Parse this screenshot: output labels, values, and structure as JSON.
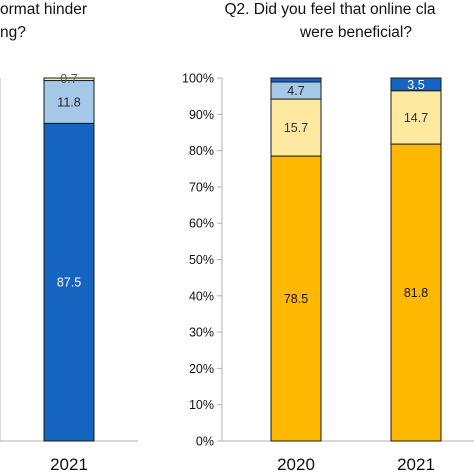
{
  "chart_data": [
    {
      "type": "bar",
      "stacked": true,
      "title_lines": [
        "ormat hinder",
        "ng?"
      ],
      "categories": [
        "2021"
      ],
      "series": [
        {
          "values": [
            87.5
          ],
          "color": "#1565C0",
          "label_color": "#ffffff"
        },
        {
          "values": [
            11.8
          ],
          "color": "#A6C8E8",
          "label_color": "#222222"
        },
        {
          "values": [
            0.7
          ],
          "color": "#FFE8A0",
          "label_color": "#555555"
        }
      ],
      "ylim": [
        0,
        100
      ],
      "grid": false
    },
    {
      "type": "bar",
      "stacked": true,
      "title_lines": [
        "Q2. Did you feel that online cla",
        "were beneficial?"
      ],
      "categories": [
        "2020",
        "2021"
      ],
      "series": [
        {
          "values": [
            78.5,
            81.8
          ],
          "color": "#FFB800",
          "label_color": "#111111"
        },
        {
          "values": [
            15.7,
            14.7
          ],
          "color": "#FFE8A0",
          "label_color": "#333333"
        },
        {
          "values": [
            4.7,
            0
          ],
          "color": "#A6C8E8",
          "label_color": "#222222"
        },
        {
          "values": [
            1.1,
            3.5
          ],
          "color": "#1565C0",
          "label_color": "#ffffff"
        }
      ],
      "display_labels": [
        [
          "78.5",
          "81.8"
        ],
        [
          "15.7",
          "14.7"
        ],
        [
          "4.7",
          ""
        ],
        [
          "",
          "3.5"
        ]
      ],
      "ylim": [
        0,
        100
      ],
      "yticks": [
        "0%",
        "10%",
        "20%",
        "30%",
        "40%",
        "50%",
        "60%",
        "70%",
        "80%",
        "90%",
        "100%"
      ],
      "grid": false
    }
  ]
}
